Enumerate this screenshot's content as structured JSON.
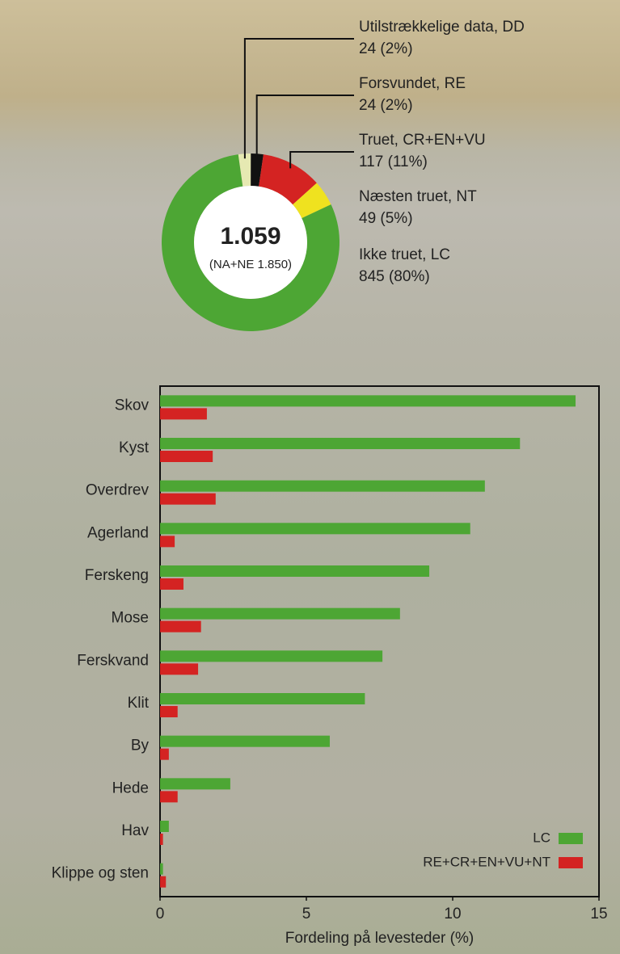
{
  "chart_data": [
    {
      "type": "pie",
      "center_label": "1.059",
      "center_sublabel": "(NA+NE 1.850)",
      "categories": [
        "Utilstrækkelige data, DD",
        "Forsvundet, RE",
        "Truet, CR+EN+VU",
        "Næsten truet, NT",
        "Ikke truet, LC"
      ],
      "values": [
        24,
        24,
        117,
        49,
        845
      ],
      "value_labels": [
        "24 (2%)",
        "24 (2%)",
        "117 (11%)",
        "49 (5%)",
        "845 (80%)"
      ],
      "colors": [
        "#e6e9b2",
        "#111111",
        "#d42322",
        "#efe21f",
        "#4da634"
      ]
    },
    {
      "type": "hbar",
      "categories": [
        "Skov",
        "Kyst",
        "Overdrev",
        "Agerland",
        "Ferskeng",
        "Mose",
        "Ferskvand",
        "Klit",
        "By",
        "Hede",
        "Hav",
        "Klippe og sten"
      ],
      "series": [
        {
          "name": "LC",
          "color": "#4da634",
          "values": [
            14.2,
            12.3,
            11.1,
            10.6,
            9.2,
            8.2,
            7.6,
            7.0,
            5.8,
            2.4,
            0.3,
            0.1
          ]
        },
        {
          "name": "RE+CR+EN+VU+NT",
          "color": "#d42322",
          "values": [
            1.6,
            1.8,
            1.9,
            0.5,
            0.8,
            1.4,
            1.3,
            0.6,
            0.3,
            0.6,
            0.1,
            0.2
          ]
        }
      ],
      "xlabel": "Fordeling på levesteder (%)",
      "xlim": [
        0,
        15
      ],
      "xticks": [
        0,
        5,
        10,
        15
      ],
      "legend": "lower right"
    }
  ]
}
